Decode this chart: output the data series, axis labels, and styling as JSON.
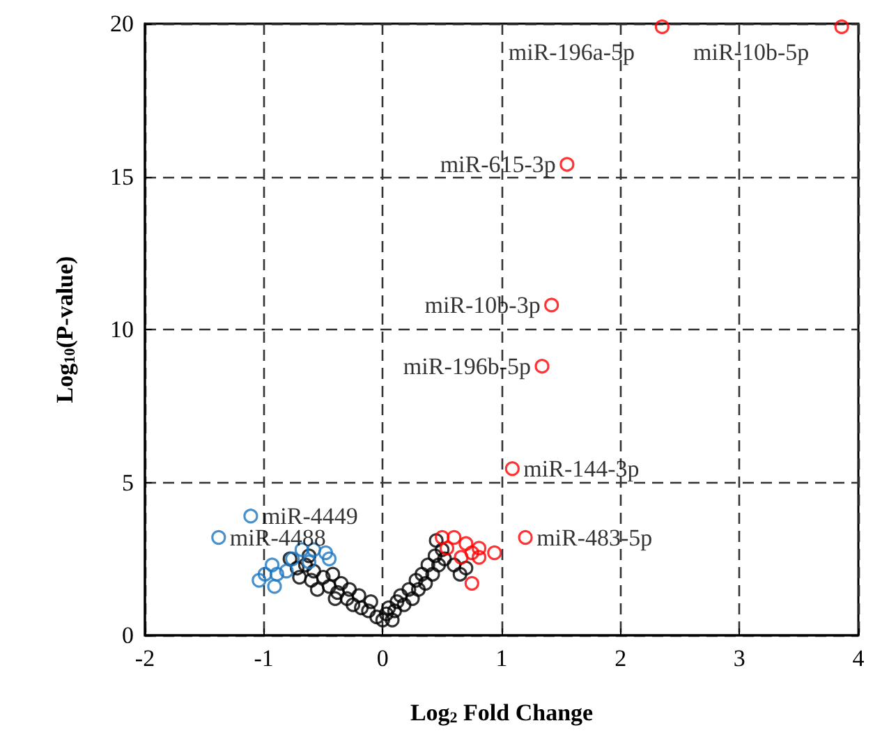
{
  "chart_data": {
    "type": "scatter",
    "xlabel": "Log$_{2}$ Fold Change",
    "ylabel": "Log$_{10}$(P-value)",
    "xlim": [
      -2,
      4
    ],
    "xticks": [
      -2,
      -1,
      0,
      1,
      2,
      3,
      4
    ],
    "ylim": [
      0,
      20
    ],
    "yticks": [
      0,
      5,
      10,
      15,
      20
    ],
    "grid": true,
    "line_style": "dashed",
    "marker": "circle",
    "series": [
      {
        "color": "#000000",
        "x": [
          -0.78,
          -0.72,
          -0.7,
          -0.65,
          -0.62,
          -0.6,
          -0.58,
          -0.55,
          -0.5,
          -0.45,
          -0.42,
          -0.4,
          -0.38,
          -0.35,
          -0.3,
          -0.28,
          -0.25,
          -0.2,
          -0.18,
          -0.12,
          -0.1,
          -0.05,
          0,
          0.03,
          0.05,
          0.08,
          0.1,
          0.12,
          0.15,
          0.18,
          0.22,
          0.25,
          0.28,
          0.3,
          0.33,
          0.36,
          0.38,
          0.42,
          0.44,
          0.45,
          0.47,
          0.5,
          0.52,
          0.6,
          0.65,
          0.7
        ],
        "values": [
          2.5,
          2.2,
          1.9,
          2.3,
          2.6,
          1.8,
          2.1,
          1.5,
          1.9,
          1.6,
          2.0,
          1.2,
          1.4,
          1.7,
          1.2,
          1.5,
          1.0,
          1.3,
          0.9,
          0.8,
          1.1,
          0.6,
          0.5,
          0.7,
          0.9,
          0.5,
          0.8,
          1.1,
          1.3,
          1.0,
          1.5,
          1.2,
          1.8,
          1.5,
          2.0,
          1.7,
          2.3,
          2.0,
          2.6,
          3.1,
          2.3,
          2.8,
          2.5,
          2.3,
          2.0,
          2.2
        ]
      },
      {
        "color": "#1a75c0",
        "x": [
          -1.38,
          -1.11,
          -1.04,
          -0.99,
          -0.93,
          -0.91,
          -0.89,
          -0.81,
          -0.76,
          -0.68,
          -0.62,
          -0.58,
          -0.48,
          -0.45
        ],
        "values": [
          3.2,
          3.9,
          1.8,
          2.0,
          2.3,
          1.6,
          2.0,
          2.1,
          2.5,
          2.8,
          2.4,
          2.8,
          2.7,
          2.5
        ]
      },
      {
        "color": "#ff0000",
        "x": [
          3.86,
          2.35,
          1.55,
          1.42,
          1.34,
          1.09,
          1.2,
          0.5,
          0.54,
          0.6,
          0.66,
          0.7,
          0.75,
          0.75,
          0.81,
          0.81,
          0.94
        ],
        "values": [
          19.9,
          19.9,
          15.4,
          10.8,
          8.8,
          5.45,
          3.2,
          3.2,
          2.85,
          3.2,
          2.55,
          3.0,
          2.7,
          1.7,
          2.55,
          2.85,
          2.7
        ]
      }
    ],
    "annotations": [
      {
        "text": "miR-196a-5p",
        "x": 2.35,
        "y": 19.9
      },
      {
        "text": "miR-10b-5p",
        "x": 3.86,
        "y": 19.9
      },
      {
        "text": "miR-615-3p",
        "x": 1.55,
        "y": 15.4
      },
      {
        "text": "miR-10b-3p",
        "x": 1.42,
        "y": 10.8
      },
      {
        "text": "miR-196b-5p",
        "x": 1.34,
        "y": 8.8
      },
      {
        "text": "miR-144-3p",
        "x": 1.09,
        "y": 5.45
      },
      {
        "text": "miR-483-5p",
        "x": 1.2,
        "y": 3.2
      },
      {
        "text": "miR-4449",
        "x": -1.11,
        "y": 3.9
      },
      {
        "text": "miR-4488",
        "x": -1.38,
        "y": 3.2
      }
    ]
  }
}
